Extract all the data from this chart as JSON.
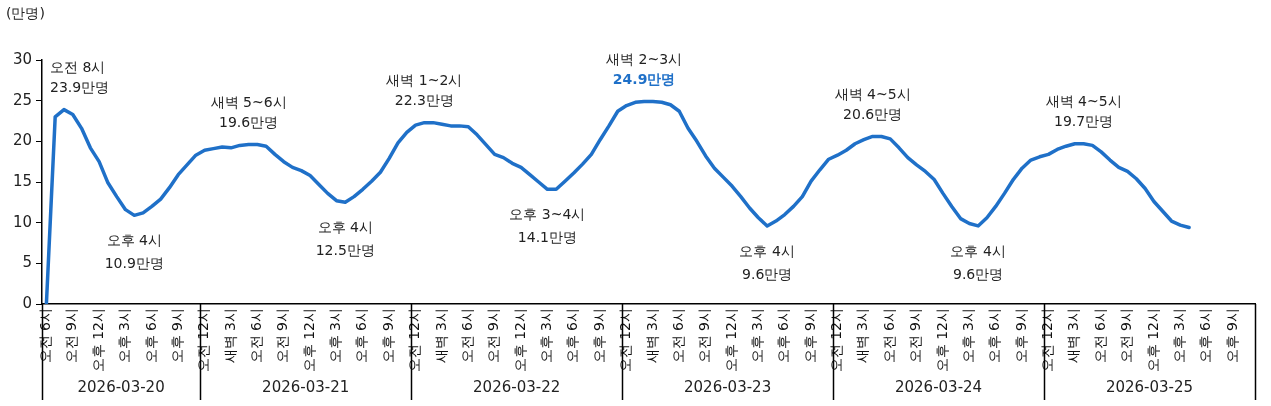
{
  "chart_data": {
    "type": "line",
    "ylabel": "(만명)",
    "x": [
      "2026-03-20T06:00",
      "2026-03-20T07:00",
      "2026-03-20T08:00",
      "2026-03-20T09:00",
      "2026-03-20T10:00",
      "2026-03-20T11:00",
      "2026-03-20T12:00",
      "2026-03-20T13:00",
      "2026-03-20T14:00",
      "2026-03-20T15:00",
      "2026-03-20T16:00",
      "2026-03-20T17:00",
      "2026-03-20T18:00",
      "2026-03-20T19:00",
      "2026-03-20T20:00",
      "2026-03-20T21:00",
      "2026-03-20T22:00",
      "2026-03-20T23:00",
      "2026-03-21T00:00",
      "2026-03-21T01:00",
      "2026-03-21T02:00",
      "2026-03-21T03:00",
      "2026-03-21T04:00",
      "2026-03-21T05:00",
      "2026-03-21T06:00",
      "2026-03-21T07:00",
      "2026-03-21T08:00",
      "2026-03-21T09:00",
      "2026-03-21T10:00",
      "2026-03-21T11:00",
      "2026-03-21T12:00",
      "2026-03-21T13:00",
      "2026-03-21T14:00",
      "2026-03-21T15:00",
      "2026-03-21T16:00",
      "2026-03-21T17:00",
      "2026-03-21T18:00",
      "2026-03-21T19:00",
      "2026-03-21T20:00",
      "2026-03-21T21:00",
      "2026-03-21T22:00",
      "2026-03-21T23:00",
      "2026-03-22T00:00",
      "2026-03-22T01:00",
      "2026-03-22T02:00",
      "2026-03-22T03:00",
      "2026-03-22T04:00",
      "2026-03-22T05:00",
      "2026-03-22T06:00",
      "2026-03-22T07:00",
      "2026-03-22T08:00",
      "2026-03-22T09:00",
      "2026-03-22T10:00",
      "2026-03-22T11:00",
      "2026-03-22T12:00",
      "2026-03-22T13:00",
      "2026-03-22T14:00",
      "2026-03-22T15:00",
      "2026-03-22T16:00",
      "2026-03-22T17:00",
      "2026-03-22T18:00",
      "2026-03-22T19:00",
      "2026-03-22T20:00",
      "2026-03-22T21:00",
      "2026-03-22T22:00",
      "2026-03-22T23:00",
      "2026-03-23T00:00",
      "2026-03-23T01:00",
      "2026-03-23T02:00",
      "2026-03-23T03:00",
      "2026-03-23T04:00",
      "2026-03-23T05:00",
      "2026-03-23T06:00",
      "2026-03-23T07:00",
      "2026-03-23T08:00",
      "2026-03-23T09:00",
      "2026-03-23T10:00",
      "2026-03-23T11:00",
      "2026-03-23T12:00",
      "2026-03-23T13:00",
      "2026-03-23T14:00",
      "2026-03-23T15:00",
      "2026-03-23T16:00",
      "2026-03-23T17:00",
      "2026-03-23T18:00",
      "2026-03-23T19:00",
      "2026-03-23T20:00",
      "2026-03-23T21:00",
      "2026-03-23T22:00",
      "2026-03-23T23:00",
      "2026-03-24T00:00",
      "2026-03-24T01:00",
      "2026-03-24T02:00",
      "2026-03-24T03:00",
      "2026-03-24T04:00",
      "2026-03-24T05:00",
      "2026-03-24T06:00",
      "2026-03-24T07:00",
      "2026-03-24T08:00",
      "2026-03-24T09:00",
      "2026-03-24T10:00",
      "2026-03-24T11:00",
      "2026-03-24T12:00",
      "2026-03-24T13:00",
      "2026-03-24T14:00",
      "2026-03-24T15:00",
      "2026-03-24T16:00",
      "2026-03-24T17:00",
      "2026-03-24T18:00",
      "2026-03-24T19:00",
      "2026-03-24T20:00",
      "2026-03-24T21:00",
      "2026-03-24T22:00",
      "2026-03-24T23:00",
      "2026-03-25T00:00",
      "2026-03-25T01:00",
      "2026-03-25T02:00",
      "2026-03-25T03:00",
      "2026-03-25T04:00",
      "2026-03-25T05:00",
      "2026-03-25T06:00",
      "2026-03-25T07:00",
      "2026-03-25T08:00",
      "2026-03-25T09:00",
      "2026-03-25T10:00",
      "2026-03-25T11:00",
      "2026-03-25T12:00",
      "2026-03-25T13:00",
      "2026-03-25T14:00",
      "2026-03-25T15:00",
      "2026-03-25T16:00"
    ],
    "series": [
      {
        "color": "#1f70c8",
        "values": [
          0,
          23.0,
          23.9,
          23.3,
          21.6,
          19.2,
          17.5,
          14.9,
          13.2,
          11.6,
          10.9,
          11.2,
          12.0,
          12.9,
          14.3,
          15.9,
          17.1,
          18.3,
          18.9,
          19.1,
          19.3,
          19.2,
          19.5,
          19.6,
          19.6,
          19.4,
          18.4,
          17.5,
          16.8,
          16.4,
          15.8,
          14.7,
          13.6,
          12.7,
          12.5,
          13.2,
          14.1,
          15.1,
          16.2,
          17.9,
          19.8,
          21.1,
          22.0,
          22.3,
          22.3,
          22.1,
          21.9,
          21.9,
          21.8,
          20.8,
          19.6,
          18.4,
          18.0,
          17.3,
          16.8,
          15.9,
          15.0,
          14.1,
          14.1,
          15.1,
          16.1,
          17.2,
          18.4,
          20.2,
          21.9,
          23.7,
          24.4,
          24.8,
          24.9,
          24.9,
          24.8,
          24.5,
          23.7,
          21.6,
          20.0,
          18.2,
          16.7,
          15.6,
          14.5,
          13.2,
          11.8,
          10.6,
          9.6,
          10.2,
          11.0,
          12.0,
          13.2,
          15.1,
          16.5,
          17.8,
          18.3,
          18.9,
          19.7,
          20.2,
          20.6,
          20.6,
          20.3,
          19.2,
          18.0,
          17.1,
          16.3,
          15.3,
          13.6,
          12.0,
          10.5,
          9.9,
          9.6,
          10.6,
          12.0,
          13.6,
          15.3,
          16.7,
          17.7,
          18.1,
          18.4,
          19.0,
          19.4,
          19.7,
          19.7,
          19.5,
          18.7,
          17.7,
          16.8,
          16.3,
          15.4,
          14.2,
          12.6,
          11.4,
          10.2,
          9.7,
          9.4
        ],
        "value_labels": [
          null,
          null,
          "23.9만명",
          null,
          null,
          null,
          null,
          null,
          null,
          null,
          "10.9만명",
          null,
          null,
          null,
          null,
          null,
          null,
          null,
          null,
          null,
          null,
          null,
          null,
          "19.6만명",
          null,
          null,
          null,
          null,
          null,
          null,
          null,
          null,
          null,
          null,
          "12.5만명",
          null,
          null,
          null,
          null,
          null,
          null,
          null,
          null,
          "22.3만명",
          null,
          null,
          null,
          null,
          null,
          null,
          null,
          null,
          null,
          null,
          null,
          null,
          null,
          "14.1만명",
          null,
          null,
          null,
          null,
          null,
          null,
          null,
          null,
          null,
          null,
          "24.9만명",
          null,
          null,
          null,
          null,
          null,
          null,
          null,
          null,
          null,
          null,
          null,
          null,
          null,
          "9.6만명",
          null,
          null,
          null,
          null,
          null,
          null,
          null,
          null,
          null,
          null,
          null,
          "20.6만명",
          null,
          null,
          null,
          null,
          null,
          null,
          null,
          null,
          null,
          null,
          null,
          "9.6만명",
          null,
          null,
          null,
          null,
          null,
          null,
          null,
          null,
          null,
          null,
          null,
          "19.7만명",
          null,
          null,
          null,
          null,
          null,
          null,
          null,
          null,
          null,
          null,
          null,
          null
        ]
      }
    ],
    "xlim": [
      "2026-03-20T05:30",
      "2026-03-25T23:30"
    ],
    "xticks": [
      {
        "value": "2026-03-20T06:00",
        "label": "오전 6시"
      },
      {
        "value": "2026-03-20T09:00",
        "label": "오전 9시"
      },
      {
        "value": "2026-03-20T12:00",
        "label": "오후 12시"
      },
      {
        "value": "2026-03-20T15:00",
        "label": "오후 3시"
      },
      {
        "value": "2026-03-20T18:00",
        "label": "오후 6시"
      },
      {
        "value": "2026-03-20T21:00",
        "label": "오후 9시"
      },
      {
        "value": "2026-03-21T00:00",
        "label": "오전 12시"
      },
      {
        "value": "2026-03-21T03:00",
        "label": "새벽 3시"
      },
      {
        "value": "2026-03-21T06:00",
        "label": "오전 6시"
      },
      {
        "value": "2026-03-21T09:00",
        "label": "오전 9시"
      },
      {
        "value": "2026-03-21T12:00",
        "label": "오후 12시"
      },
      {
        "value": "2026-03-21T15:00",
        "label": "오후 3시"
      },
      {
        "value": "2026-03-21T18:00",
        "label": "오후 6시"
      },
      {
        "value": "2026-03-21T21:00",
        "label": "오후 9시"
      },
      {
        "value": "2026-03-22T00:00",
        "label": "오전 12시"
      },
      {
        "value": "2026-03-22T03:00",
        "label": "새벽 3시"
      },
      {
        "value": "2026-03-22T06:00",
        "label": "오전 6시"
      },
      {
        "value": "2026-03-22T09:00",
        "label": "오전 9시"
      },
      {
        "value": "2026-03-22T12:00",
        "label": "오후 12시"
      },
      {
        "value": "2026-03-22T15:00",
        "label": "오후 3시"
      },
      {
        "value": "2026-03-22T18:00",
        "label": "오후 6시"
      },
      {
        "value": "2026-03-22T21:00",
        "label": "오후 9시"
      },
      {
        "value": "2026-03-23T00:00",
        "label": "오전 12시"
      },
      {
        "value": "2026-03-23T03:00",
        "label": "새벽 3시"
      },
      {
        "value": "2026-03-23T06:00",
        "label": "오전 6시"
      },
      {
        "value": "2026-03-23T09:00",
        "label": "오전 9시"
      },
      {
        "value": "2026-03-23T12:00",
        "label": "오후 12시"
      },
      {
        "value": "2026-03-23T15:00",
        "label": "오후 3시"
      },
      {
        "value": "2026-03-23T18:00",
        "label": "오후 6시"
      },
      {
        "value": "2026-03-23T21:00",
        "label": "오후 9시"
      },
      {
        "value": "2026-03-24T00:00",
        "label": "오전 12시"
      },
      {
        "value": "2026-03-24T03:00",
        "label": "새벽 3시"
      },
      {
        "value": "2026-03-24T06:00",
        "label": "오전 6시"
      },
      {
        "value": "2026-03-24T09:00",
        "label": "오전 9시"
      },
      {
        "value": "2026-03-24T12:00",
        "label": "오후 12시"
      },
      {
        "value": "2026-03-24T15:00",
        "label": "오후 3시"
      },
      {
        "value": "2026-03-24T18:00",
        "label": "오후 6시"
      },
      {
        "value": "2026-03-24T21:00",
        "label": "오후 9시"
      },
      {
        "value": "2026-03-25T00:00",
        "label": "오전 12시"
      },
      {
        "value": "2026-03-25T03:00",
        "label": "새벽 3시"
      },
      {
        "value": "2026-03-25T06:00",
        "label": "오전 6시"
      },
      {
        "value": "2026-03-25T09:00",
        "label": "오전 9시"
      },
      {
        "value": "2026-03-25T12:00",
        "label": "오후 12시"
      },
      {
        "value": "2026-03-25T15:00",
        "label": "오후 3시"
      },
      {
        "value": "2026-03-25T18:00",
        "label": "오후 6시"
      },
      {
        "value": "2026-03-25T21:00",
        "label": "오후 9시"
      }
    ],
    "ylim": [
      0,
      30
    ],
    "yticks": [
      0,
      5,
      10,
      15,
      20,
      25,
      30
    ],
    "annotations": [
      "2026-03-20",
      "2026-03-21",
      "2026-03-22",
      "2026-03-23",
      "2026-03-24",
      "2026-03-25",
      {
        "text": "오전 8시",
        "x": "2026-03-20T08:00",
        "y": 23.9
      },
      {
        "text": "오후 4시",
        "x": "2026-03-20T16:00",
        "y": 10.9
      },
      {
        "text": "새벽 5~6시",
        "x": "2026-03-21T05:00",
        "y": 19.6
      },
      {
        "text": "오후 4시",
        "x": "2026-03-21T16:00",
        "y": 12.5
      },
      {
        "text": "새벽 1~2시",
        "x": "2026-03-22T01:00",
        "y": 22.3
      },
      {
        "text": "오후 3~4시",
        "x": "2026-03-22T15:00",
        "y": 14.1
      },
      {
        "text": "새벽 2~3시",
        "x": "2026-03-23T02:00",
        "y": 24.9
      },
      {
        "text": "오후 4시",
        "x": "2026-03-23T16:00",
        "y": 9.6
      },
      {
        "text": "새벽 4~5시",
        "x": "2026-03-24T04:00",
        "y": 20.6
      },
      {
        "text": "오후 4시",
        "x": "2026-03-24T16:00",
        "y": 9.6
      },
      {
        "text": "새벽 4~5시",
        "x": "2026-03-25T04:00",
        "y": 19.7
      }
    ],
    "grid": false,
    "legend": false,
    "marker": "none",
    "line_style": "solid"
  }
}
